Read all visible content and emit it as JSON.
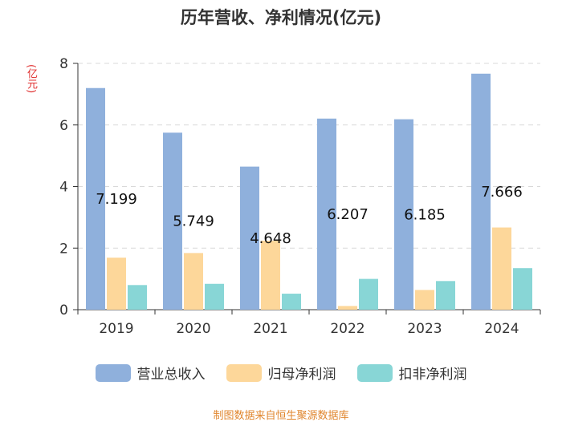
{
  "chart_data": {
    "type": "bar",
    "title": "历年营收、净利情况(亿元)",
    "ylabel": "(亿元)",
    "categories": [
      "2019",
      "2020",
      "2021",
      "2022",
      "2023",
      "2024"
    ],
    "series": [
      {
        "name": "营业总收入",
        "color": "#8fb0dc",
        "values": [
          7.199,
          5.749,
          4.648,
          6.207,
          6.185,
          7.666
        ]
      },
      {
        "name": "归母净利润",
        "color": "#fdd79a",
        "values": [
          1.69,
          1.84,
          2.24,
          0.12,
          0.64,
          2.67
        ]
      },
      {
        "name": "扣非净利润",
        "color": "#88d6d6",
        "values": [
          0.8,
          0.84,
          0.52,
          1.0,
          0.93,
          1.35
        ]
      }
    ],
    "data_labels": [
      "7.199",
      "5.749",
      "4.648",
      "6.207",
      "6.185",
      "7.666"
    ],
    "ylim": [
      0,
      8
    ],
    "yticks": [
      "0",
      "2",
      "4",
      "6",
      "8"
    ],
    "grid": true,
    "legend_position": "bottom"
  },
  "source": "制图数据来自恒生聚源数据库"
}
